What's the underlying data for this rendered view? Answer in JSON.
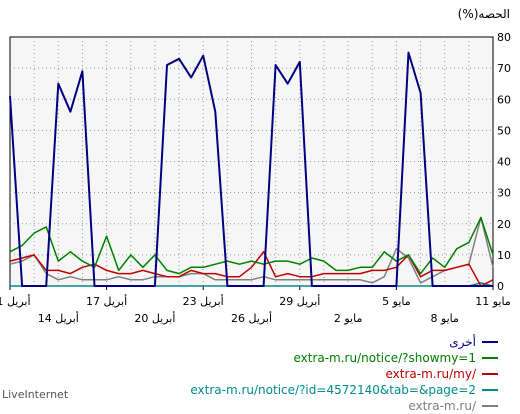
{
  "brand": "LiveInternet",
  "chart_data": {
    "type": "line",
    "ylabel": "(%)الحصه",
    "ylim": [
      0,
      80
    ],
    "yticks": [
      0,
      10,
      20,
      30,
      40,
      50,
      60,
      70,
      80
    ],
    "x_ticks_row1": [
      "11 مايو",
      "5 مايو",
      "29 أبريل",
      "23 أبريل",
      "17 أبريل",
      "11 أبريل"
    ],
    "x_ticks_row2": [
      "8 مايو",
      "2 مايو",
      "26 أبريل",
      "20 أبريل",
      "14 أبريل"
    ],
    "grid": true,
    "legend_position": "bottom-right",
    "series": [
      {
        "name": "أخرى",
        "color": "#000080",
        "values": [
          0,
          0,
          0,
          0,
          0,
          0,
          62,
          75,
          0,
          0,
          0,
          0,
          0,
          0,
          0,
          0,
          72,
          65,
          71,
          0,
          0,
          0,
          0,
          56,
          74,
          67,
          73,
          71,
          0,
          0,
          0,
          0,
          0,
          0,
          69,
          56,
          65,
          0,
          0,
          0,
          61
        ]
      },
      {
        "name": "extra-m.ru/notice/?showmy=1",
        "color": "#008000",
        "values": [
          10,
          22,
          14,
          12,
          6,
          9,
          4,
          10,
          8,
          11,
          6,
          6,
          5,
          5,
          8,
          9,
          7,
          8,
          8,
          7,
          8,
          7,
          8,
          7,
          6,
          6,
          4,
          5,
          10,
          6,
          10,
          5,
          16,
          6,
          8,
          11,
          8,
          19,
          17,
          13,
          11
        ]
      },
      {
        "name": "extra-m.ru/my/",
        "color": "#c00000",
        "values": [
          2,
          0,
          7,
          6,
          5,
          5,
          3,
          10,
          6,
          5,
          5,
          4,
          4,
          4,
          4,
          3,
          3,
          4,
          3,
          11,
          6,
          3,
          3,
          4,
          4,
          5,
          3,
          3,
          4,
          5,
          4,
          4,
          5,
          7,
          6,
          4,
          5,
          5,
          10,
          9,
          8
        ]
      },
      {
        "name": "extra-m.ru/notice/?id=4572140&tab=&page=2",
        "color": "#008b8b",
        "values": [
          0,
          1,
          0,
          0,
          0,
          0,
          0,
          0,
          0,
          0,
          0,
          0,
          0,
          0,
          0,
          0,
          0,
          0,
          0,
          0,
          0,
          0,
          0,
          0,
          0,
          0,
          0,
          0,
          0,
          0,
          0,
          0,
          0,
          0,
          0,
          0,
          0,
          0,
          0,
          0,
          0
        ]
      },
      {
        "name": "extra-m.ru/",
        "color": "#808080",
        "values": [
          6,
          22,
          7,
          6,
          5,
          3,
          1,
          9,
          12,
          3,
          1,
          2,
          2,
          2,
          2,
          2,
          2,
          2,
          2,
          3,
          2,
          2,
          2,
          2,
          4,
          4,
          3,
          3,
          3,
          2,
          2,
          3,
          2,
          2,
          2,
          3,
          2,
          4,
          10,
          8,
          7
        ]
      }
    ]
  }
}
